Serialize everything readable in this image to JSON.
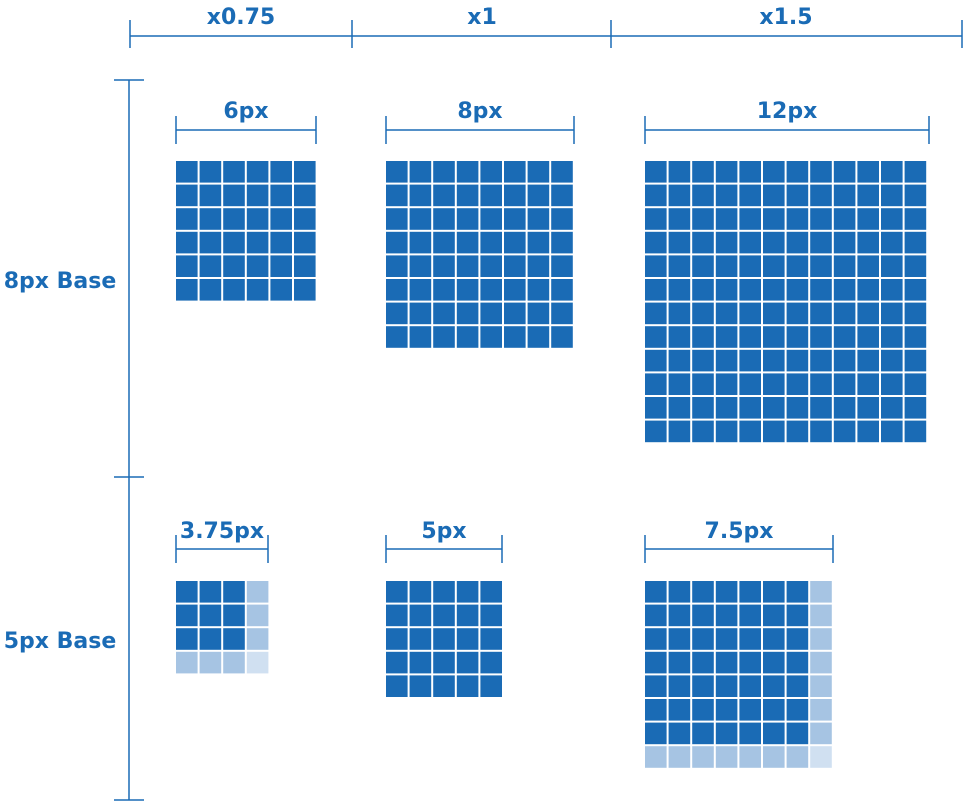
{
  "colors": {
    "accent": "#1a6bb5",
    "full_cell": "#1a6bb5",
    "partial_cell": "#a6c4e3",
    "corner_cell": "#d0e0f1",
    "background": "#ffffff"
  },
  "columns": [
    {
      "label": "x0.75"
    },
    {
      "label": "x1"
    },
    {
      "label": "x1.5"
    }
  ],
  "rows": [
    {
      "label": "8px Base",
      "cells": [
        {
          "size_label": "6px",
          "grid": 6,
          "full": 6
        },
        {
          "size_label": "8px",
          "grid": 8,
          "full": 8
        },
        {
          "size_label": "12px",
          "grid": 12,
          "full": 12
        }
      ]
    },
    {
      "label": "5px Base",
      "cells": [
        {
          "size_label": "3.75px",
          "grid": 4,
          "full": 3
        },
        {
          "size_label": "5px",
          "grid": 5,
          "full": 5
        },
        {
          "size_label": "7.5px",
          "grid": 8,
          "full": 7
        }
      ]
    }
  ]
}
